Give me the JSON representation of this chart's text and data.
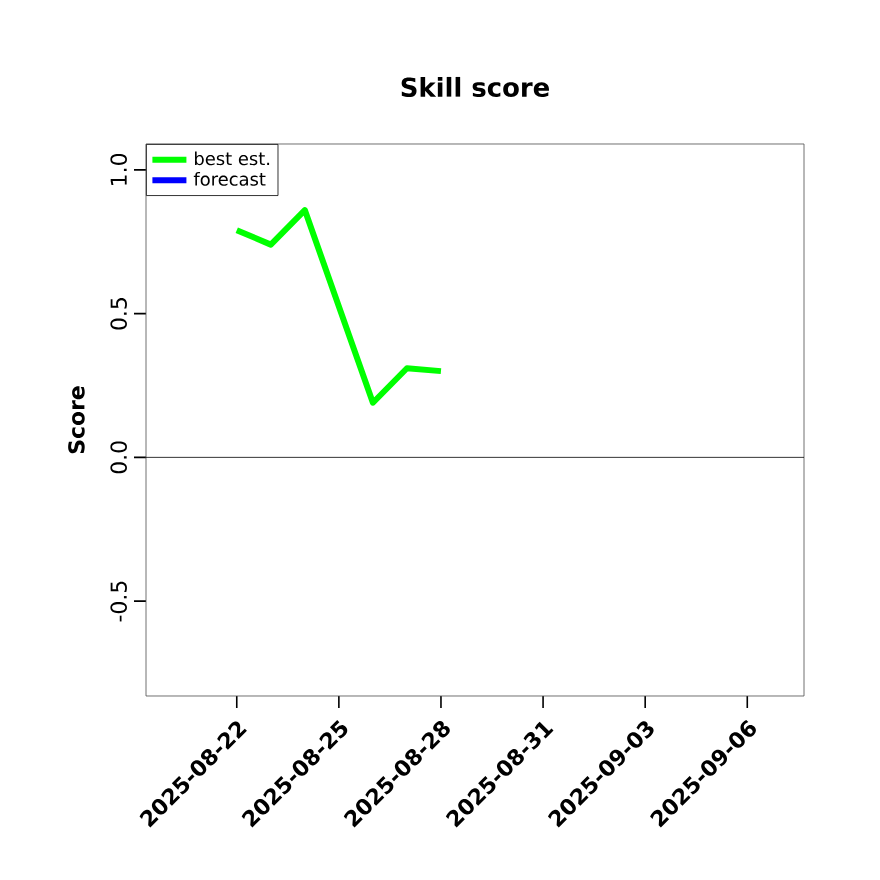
{
  "chart_data": {
    "type": "line",
    "title": "Skill score",
    "ylabel": "Score",
    "x": [
      "2025-08-22",
      "2025-08-23",
      "2025-08-24",
      "2025-08-26",
      "2025-08-27",
      "2025-08-28"
    ],
    "series": [
      {
        "name": "best est.",
        "color": "#00ff00",
        "values": [
          0.79,
          0.74,
          0.86,
          0.19,
          0.31,
          0.3
        ]
      },
      {
        "name": "forecast",
        "color": "#0000ff",
        "values": [
          null,
          null,
          null,
          null,
          null,
          null
        ]
      }
    ],
    "xlim": [
      "2025-08-19T08:00",
      "2025-09-07T16:00"
    ],
    "xticks": [
      "2025-08-22",
      "2025-08-25",
      "2025-08-28",
      "2025-08-31",
      "2025-09-03",
      "2025-09-06"
    ],
    "ylim": [
      -0.83,
      1.09
    ],
    "yticks": [
      -0.5,
      {
        "value": 0,
        "label": "0.0"
      },
      0.5,
      {
        "value": 1,
        "label": "1.0"
      }
    ],
    "ref_lines": [
      {
        "axis": "y",
        "value": 0,
        "color": "#000000"
      }
    ],
    "legend": "top left",
    "grid": false,
    "marker": "none",
    "line_style": "solid"
  }
}
